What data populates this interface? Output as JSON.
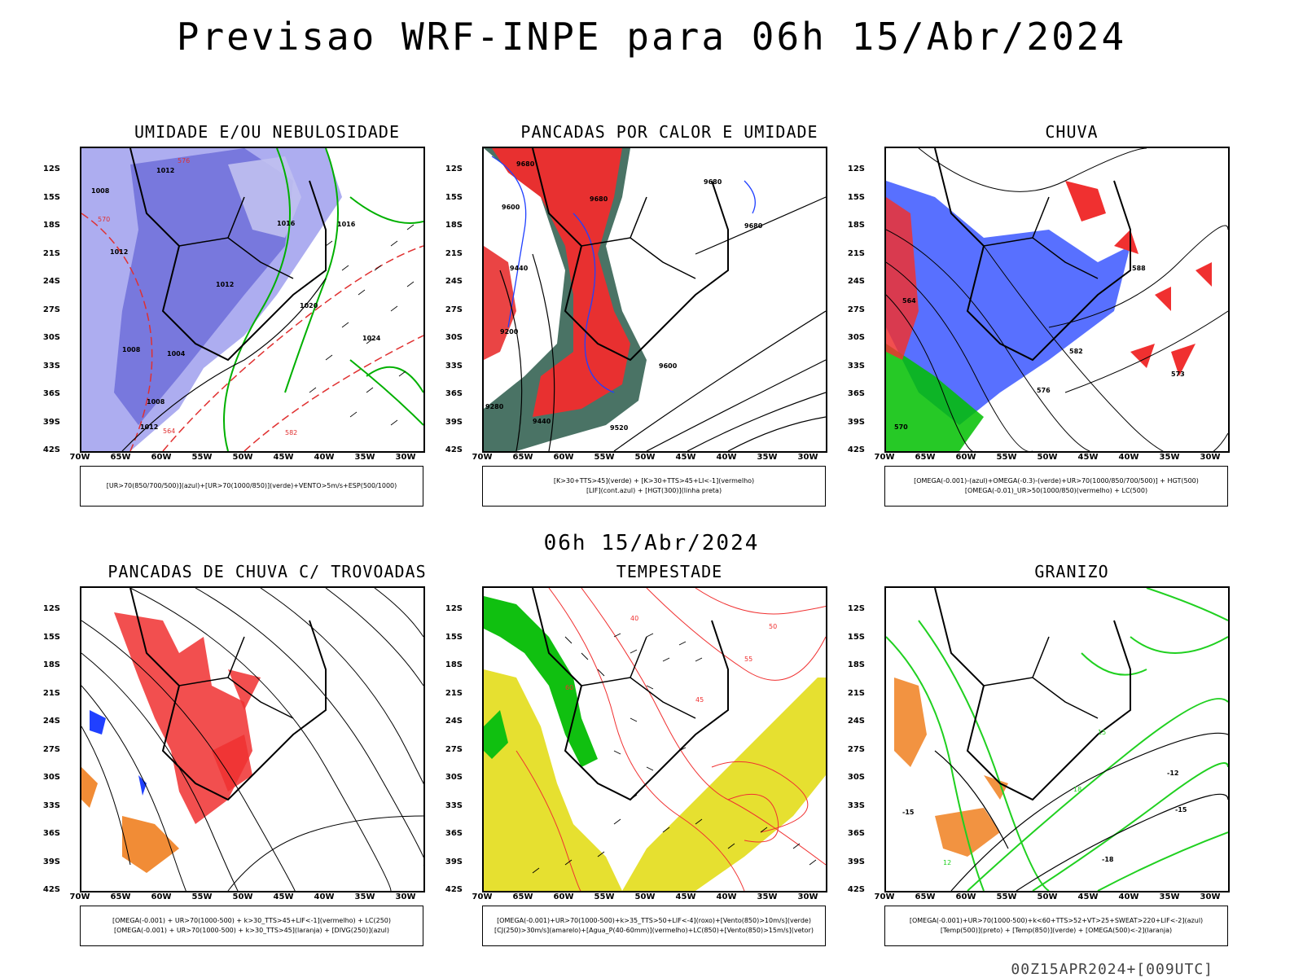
{
  "title": "Previsao WRF-INPE  para 06h 15/Abr/2024",
  "subtitle": "06h 15/Abr/2024",
  "stamp": "00Z15APR2024+[009UTC]",
  "lat_labels": [
    "12S",
    "15S",
    "18S",
    "21S",
    "24S",
    "27S",
    "30S",
    "33S",
    "36S",
    "39S",
    "42S"
  ],
  "lon_labels": [
    "70W",
    "65W",
    "60W",
    "55W",
    "50W",
    "45W",
    "40W",
    "35W",
    "30W"
  ],
  "panels": [
    {
      "title": "UMIDADE E/OU NEBULOSIDADE",
      "legend": [
        "[UR>70(850/700/500)](azul)+[UR>70(1000/850)](verde)+VENTO>5m/s+ESP(500/1000)"
      ],
      "colors": {
        "humid_upper": "#7070e0",
        "humid_low": "#00b000",
        "thickness": "#e03030"
      },
      "labels": [
        "1012",
        "1008",
        "1012",
        "1012",
        "1016",
        "1016",
        "1020",
        "1024",
        "1008",
        "1004",
        "1008",
        "1012",
        "576",
        "570",
        "564",
        "582"
      ]
    },
    {
      "title": "PANCADAS POR CALOR E UMIDADE",
      "legend": [
        "[K>30+TTS>45](verde) + [K>30+TTS>45+LI<-1](vermelho)",
        "[LIF](cont.azul) + [HGT(300)](linha preta)"
      ],
      "colors": {
        "instab": "#e83030",
        "moist": "#2a5a4a",
        "lif": "#2040ff"
      },
      "labels": [
        "9680",
        "9680",
        "9600",
        "9440",
        "9200",
        "9280",
        "9440",
        "9520",
        "9600",
        "9680",
        "9680"
      ]
    },
    {
      "title": "CHUVA",
      "legend": [
        "[OMEGA(-0.001)-(azul)+OMEGA(-0.3)-(verde)+UR>70(1000/850/700/500)] + HGT(500)",
        "[OMEGA(-0.01)_UR>50(1000/850)(vermelho) + LC(500)"
      ],
      "colors": {
        "omega_blue": "#2040ff",
        "omega_green": "#00c000",
        "rain_red": "#f03030"
      },
      "labels": [
        "588",
        "582",
        "576",
        "573",
        "564",
        "570"
      ]
    },
    {
      "title": "PANCADAS DE CHUVA C/ TROVOADAS",
      "legend": [
        "[OMEGA(-0.001) + UR>70(1000-500) + k>30_TTS>45+LIF<-1](vermelho) + LC(250)",
        "[OMEGA(-0.001) + UR>70(1000-500) + k>30_TTS>45](laranja) + [DIVG(250)](azul)"
      ],
      "colors": {
        "storm_red": "#f03030",
        "storm_orange": "#f08020",
        "divg": "#2040ff"
      },
      "labels": []
    },
    {
      "title": "TEMPESTADE",
      "legend": [
        "[OMEGA(-0.001)+UR>70(1000-500)+k>35_TTS>50+LIF<-4](roxo)+[Vento(850)>10m/s](verde)",
        "[CJ(250)>30m/s](amarelo)+[Agua_P(40-60mm)](vermelho)+LC(850)+[Vento(850)>15m/s](vetor)"
      ],
      "colors": {
        "jet": "#e6e030",
        "wind": "#10c010",
        "water": "#f03030"
      },
      "labels": [
        "40",
        "50",
        "60",
        "45",
        "55"
      ]
    },
    {
      "title": "GRANIZO",
      "legend": [
        "[OMEGA(-0.001)+UR>70(1000-500)+k<60+TTS>52+VT>25+SWEAT>220+LIF<-2](azul)",
        "[Temp(500)](preto) + [Temp(850)](verde) + [OMEGA(500)<-2](laranja)"
      ],
      "colors": {
        "temp850": "#20d020",
        "omega": "#f08020"
      },
      "labels": [
        "-12",
        "-15",
        "-18",
        "-15",
        "15",
        "18",
        "12"
      ]
    }
  ]
}
